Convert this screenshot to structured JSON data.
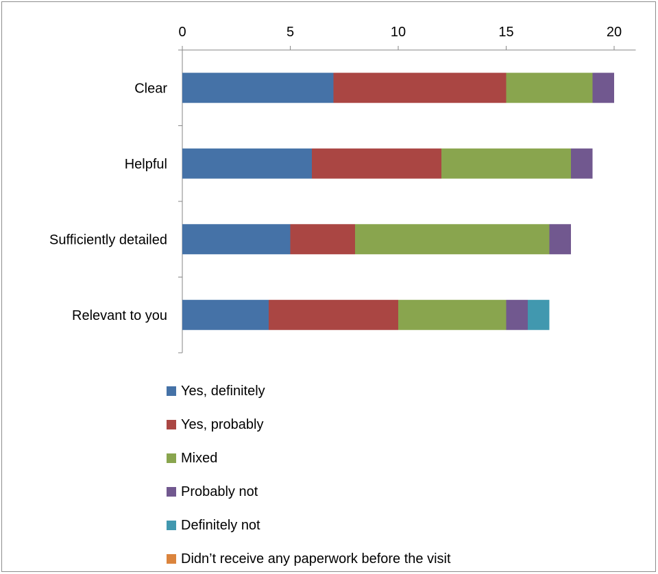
{
  "chart_data": {
    "type": "bar",
    "orientation": "horizontal",
    "stacked": true,
    "title": "",
    "xlabel": "",
    "ylabel": "",
    "xlim": [
      0,
      21
    ],
    "x_ticks": [
      0,
      5,
      10,
      15,
      20
    ],
    "x_axis_position": "top",
    "grid": false,
    "legend_position": "bottom",
    "categories": [
      "Clear",
      "Helpful",
      "Sufficiently detailed",
      "Relevant to you"
    ],
    "series": [
      {
        "name": "Yes, definitely",
        "color": "#4572A7",
        "values": [
          7,
          6,
          5,
          4
        ]
      },
      {
        "name": "Yes, probably",
        "color": "#AA4643",
        "values": [
          8,
          6,
          3,
          6
        ]
      },
      {
        "name": "Mixed",
        "color": "#89A54E",
        "values": [
          4,
          6,
          9,
          5
        ]
      },
      {
        "name": "Probably not",
        "color": "#71588F",
        "values": [
          1,
          1,
          1,
          1
        ]
      },
      {
        "name": "Definitely not",
        "color": "#4198AF",
        "values": [
          0,
          0,
          0,
          1
        ]
      },
      {
        "name": "Didn’t receive any paperwork before the visit",
        "color": "#DB843D",
        "values": [
          0,
          0,
          0,
          0
        ]
      }
    ]
  }
}
